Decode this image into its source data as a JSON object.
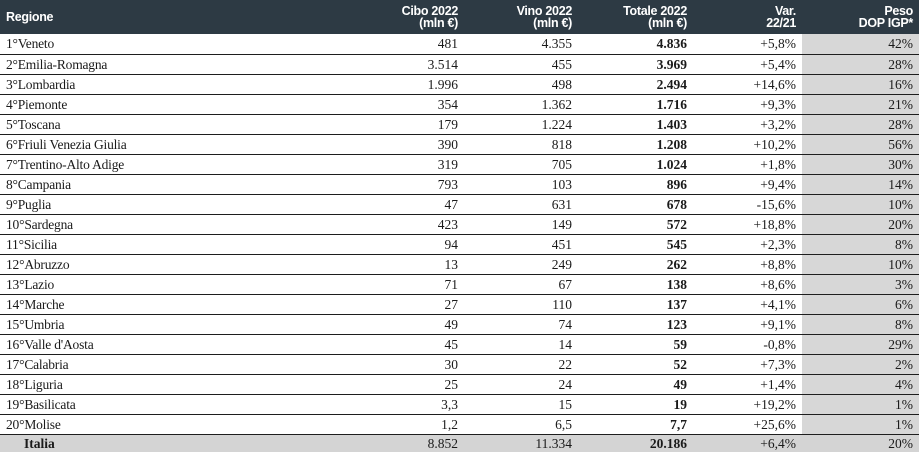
{
  "headers": {
    "regione": "Regione",
    "cibo": [
      "Cibo 2022",
      "(mln €)"
    ],
    "vino": [
      "Vino 2022",
      "(mln €)"
    ],
    "totale": [
      "Totale 2022",
      "(mln €)"
    ],
    "var": [
      "Var.",
      "22/21"
    ],
    "peso": [
      "Peso",
      "DOP IGP*"
    ]
  },
  "rows": [
    {
      "rank": "1°",
      "regione": "Veneto",
      "cibo": "481",
      "vino": "4.355",
      "totale": "4.836",
      "var": "+5,8%",
      "peso": "42%"
    },
    {
      "rank": "2°",
      "regione": "Emilia-Romagna",
      "cibo": "3.514",
      "vino": "455",
      "totale": "3.969",
      "var": "+5,4%",
      "peso": "28%"
    },
    {
      "rank": "3°",
      "regione": "Lombardia",
      "cibo": "1.996",
      "vino": "498",
      "totale": "2.494",
      "var": "+14,6%",
      "peso": "16%"
    },
    {
      "rank": "4°",
      "regione": "Piemonte",
      "cibo": "354",
      "vino": "1.362",
      "totale": "1.716",
      "var": "+9,3%",
      "peso": "21%"
    },
    {
      "rank": "5°",
      "regione": "Toscana",
      "cibo": "179",
      "vino": "1.224",
      "totale": "1.403",
      "var": "+3,2%",
      "peso": "28%"
    },
    {
      "rank": "6°",
      "regione": "Friuli Venezia Giulia",
      "cibo": "390",
      "vino": "818",
      "totale": "1.208",
      "var": "+10,2%",
      "peso": "56%"
    },
    {
      "rank": "7°",
      "regione": "Trentino-Alto Adige",
      "cibo": "319",
      "vino": "705",
      "totale": "1.024",
      "var": "+1,8%",
      "peso": "30%"
    },
    {
      "rank": "8°",
      "regione": "Campania",
      "cibo": "793",
      "vino": "103",
      "totale": "896",
      "var": "+9,4%",
      "peso": "14%"
    },
    {
      "rank": "9°",
      "regione": "Puglia",
      "cibo": "47",
      "vino": "631",
      "totale": "678",
      "var": "-15,6%",
      "peso": "10%"
    },
    {
      "rank": "10°",
      "regione": "Sardegna",
      "cibo": "423",
      "vino": "149",
      "totale": "572",
      "var": "+18,8%",
      "peso": "20%"
    },
    {
      "rank": "11°",
      "regione": "Sicilia",
      "cibo": "94",
      "vino": "451",
      "totale": "545",
      "var": "+2,3%",
      "peso": "8%"
    },
    {
      "rank": "12°",
      "regione": "Abruzzo",
      "cibo": "13",
      "vino": "249",
      "totale": "262",
      "var": "+8,8%",
      "peso": "10%"
    },
    {
      "rank": "13°",
      "regione": "Lazio",
      "cibo": "71",
      "vino": "67",
      "totale": "138",
      "var": "+8,6%",
      "peso": "3%"
    },
    {
      "rank": "14°",
      "regione": "Marche",
      "cibo": "27",
      "vino": "110",
      "totale": "137",
      "var": "+4,1%",
      "peso": "6%"
    },
    {
      "rank": "15°",
      "regione": "Umbria",
      "cibo": "49",
      "vino": "74",
      "totale": "123",
      "var": "+9,1%",
      "peso": "8%"
    },
    {
      "rank": "16°",
      "regione": "Valle d'Aosta",
      "cibo": "45",
      "vino": "14",
      "totale": "59",
      "var": "-0,8%",
      "peso": "29%"
    },
    {
      "rank": "17°",
      "regione": "Calabria",
      "cibo": "30",
      "vino": "22",
      "totale": "52",
      "var": "+7,3%",
      "peso": "2%"
    },
    {
      "rank": "18°",
      "regione": "Liguria",
      "cibo": "25",
      "vino": "24",
      "totale": "49",
      "var": "+1,4%",
      "peso": "4%"
    },
    {
      "rank": "19°",
      "regione": "Basilicata",
      "cibo": "3,3",
      "vino": "15",
      "totale": "19",
      "var": "+19,2%",
      "peso": "1%"
    },
    {
      "rank": "20°",
      "regione": "Molise",
      "cibo": "1,2",
      "vino": "6,5",
      "totale": "7,7",
      "var": "+25,6%",
      "peso": "1%"
    }
  ],
  "total": {
    "regione": "Italia",
    "cibo": "8.852",
    "vino": "11.334",
    "totale": "20.186",
    "var": "+6,4%",
    "peso": "20%"
  },
  "colors": {
    "header_bg": "#2d3a44",
    "peso_bg": "#d7d7d7",
    "total_bg": "#d4d4d4"
  }
}
